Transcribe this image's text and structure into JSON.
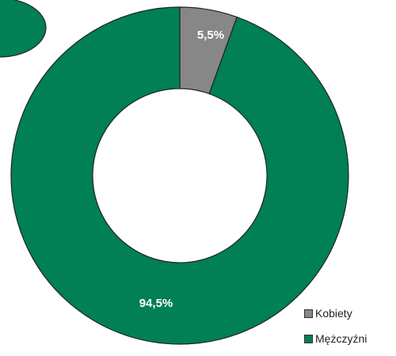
{
  "chart_data": {
    "type": "donut",
    "categories": [
      "Kobiety",
      "Mężczyźni"
    ],
    "values": [
      5.5,
      94.5
    ],
    "labels": [
      "5,5%",
      "94,5%"
    ],
    "colors": [
      "#878787",
      "#008054"
    ],
    "legend": {
      "placement": "bottom-right",
      "items": [
        {
          "label": "Kobiety",
          "color": "#878787"
        },
        {
          "label": "Mężczyźni",
          "color": "#008054"
        }
      ]
    }
  }
}
